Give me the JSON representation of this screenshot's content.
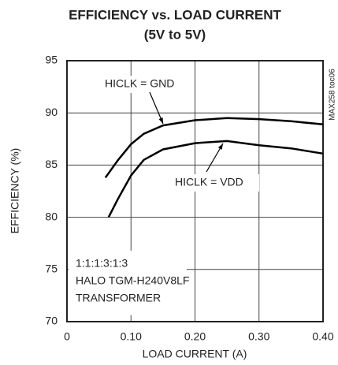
{
  "chart_data": {
    "type": "line",
    "title": "EFFICIENCY vs. LOAD CURRENT",
    "subtitle": "(5V to 5V)",
    "x_label": "LOAD CURRENT (A)",
    "y_label": "EFFICIENCY (%)",
    "annotations": [
      "1:1:1:3:1:3",
      "HALO TGM-H240V8LF",
      "TRANSFORMER"
    ],
    "figure_id": "MAX258 toc06",
    "series": [
      {
        "name": "HICLK = GND",
        "color": "#000000",
        "x": [
          0.06,
          0.08,
          0.1,
          0.12,
          0.15,
          0.2,
          0.25,
          0.3,
          0.35,
          0.4
        ],
        "values": [
          83.8,
          85.5,
          87.0,
          88.0,
          88.8,
          89.3,
          89.5,
          89.4,
          89.2,
          88.9
        ]
      },
      {
        "name": "HICLK = VDD",
        "color": "#000000",
        "x": [
          0.065,
          0.08,
          0.1,
          0.12,
          0.15,
          0.2,
          0.25,
          0.3,
          0.35,
          0.4
        ],
        "values": [
          80.0,
          81.8,
          84.0,
          85.5,
          86.5,
          87.1,
          87.3,
          86.9,
          86.6,
          86.1
        ]
      }
    ],
    "xlim": [
      0,
      0.4
    ],
    "xticks": [
      0,
      {
        "value": 0.1,
        "label": "0.10"
      },
      {
        "value": 0.2,
        "label": "0.20"
      },
      {
        "value": 0.3,
        "label": "0.30"
      },
      {
        "value": 0.4,
        "label": "0.40"
      }
    ],
    "ylim": [
      70,
      95
    ],
    "yticks": [
      70,
      75,
      80,
      85,
      90,
      95
    ],
    "grid": true
  }
}
